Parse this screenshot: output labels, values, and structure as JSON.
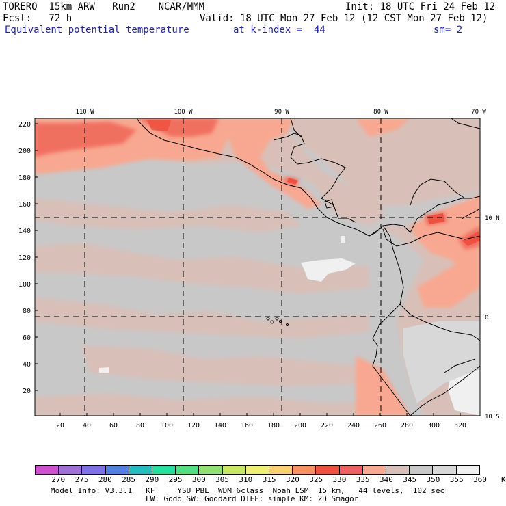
{
  "header": {
    "model": "TORERO  15km ARW   Run2    NCAR/MMM",
    "init": "Init: 18 UTC Fri 24 Feb 12",
    "fcst": "Fcst:   72 h",
    "valid": "Valid: 18 UTC Mon 27 Feb 12 (12 CST Mon 27 Feb 12)",
    "field": "Equivalent potential temperature",
    "level": "at k-index =  44",
    "smooth": "sm= 2"
  },
  "map": {
    "lon_labels": [
      "110 W",
      "100 W",
      "90 W",
      "80 W",
      "70 W"
    ],
    "lat_labels": [
      "10 N",
      "0",
      "10 S"
    ],
    "y_ticks": [
      "220",
      "200",
      "180",
      "160",
      "140",
      "120",
      "100",
      "80",
      "60",
      "40",
      "20"
    ],
    "x_ticks": [
      "20",
      "40",
      "60",
      "80",
      "100",
      "120",
      "140",
      "160",
      "180",
      "200",
      "220",
      "240",
      "260",
      "280",
      "300",
      "320"
    ]
  },
  "colorbar": {
    "labels": [
      "270",
      "275",
      "280",
      "285",
      "290",
      "295",
      "300",
      "305",
      "310",
      "315",
      "320",
      "325",
      "330",
      "335",
      "340",
      "345",
      "350",
      "355",
      "360",
      "K"
    ],
    "colors": [
      "#d050d0",
      "#a070d8",
      "#8070e8",
      "#5080e0",
      "#20c0c0",
      "#20e0a0",
      "#50e080",
      "#90e070",
      "#c8e860",
      "#f0f070",
      "#f8d070",
      "#f89060",
      "#f05040",
      "#f06060",
      "#f8a890",
      "#d8c0b8",
      "#c8c8c8",
      "#d8d8d8",
      "#f0f0f0"
    ]
  },
  "footer": {
    "line1": "Model Info: V3.3.1   KF     YSU PBL  WDM 6class  Noah LSM  15 km,   44 levels,  102 sec",
    "line2": "LW: Godd SW: Goddard DIFF: simple KM: 2D Smagor"
  }
}
